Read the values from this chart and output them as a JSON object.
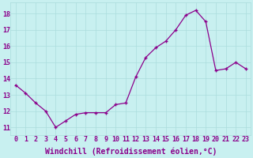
{
  "x": [
    0,
    1,
    2,
    3,
    4,
    5,
    6,
    7,
    8,
    9,
    10,
    11,
    12,
    13,
    14,
    15,
    16,
    17,
    18,
    19,
    20,
    21,
    22,
    23
  ],
  "y": [
    13.6,
    13.1,
    12.5,
    12.0,
    11.0,
    11.4,
    11.8,
    11.9,
    11.9,
    11.9,
    12.4,
    12.5,
    14.1,
    15.3,
    15.9,
    16.3,
    17.0,
    17.9,
    18.2,
    17.5,
    14.5,
    14.6,
    15.0,
    14.6
  ],
  "line_color": "#8b008b",
  "marker": "+",
  "bg_color": "#c8f0f0",
  "grid_color": "#aadddd",
  "xlabel": "Windchill (Refroidissement éolien,°C)",
  "label_color": "#8b008b",
  "tick_color": "#8b008b",
  "xlabel_fontsize": 7,
  "tick_fontsize": 6,
  "ylim": [
    10.5,
    18.7
  ],
  "xlim": [
    -0.5,
    23.5
  ],
  "yticks": [
    11,
    12,
    13,
    14,
    15,
    16,
    17,
    18
  ],
  "xticks": [
    0,
    1,
    2,
    3,
    4,
    5,
    6,
    7,
    8,
    9,
    10,
    11,
    12,
    13,
    14,
    15,
    16,
    17,
    18,
    19,
    20,
    21,
    22,
    23
  ],
  "markersize": 3,
  "linewidth": 0.9
}
